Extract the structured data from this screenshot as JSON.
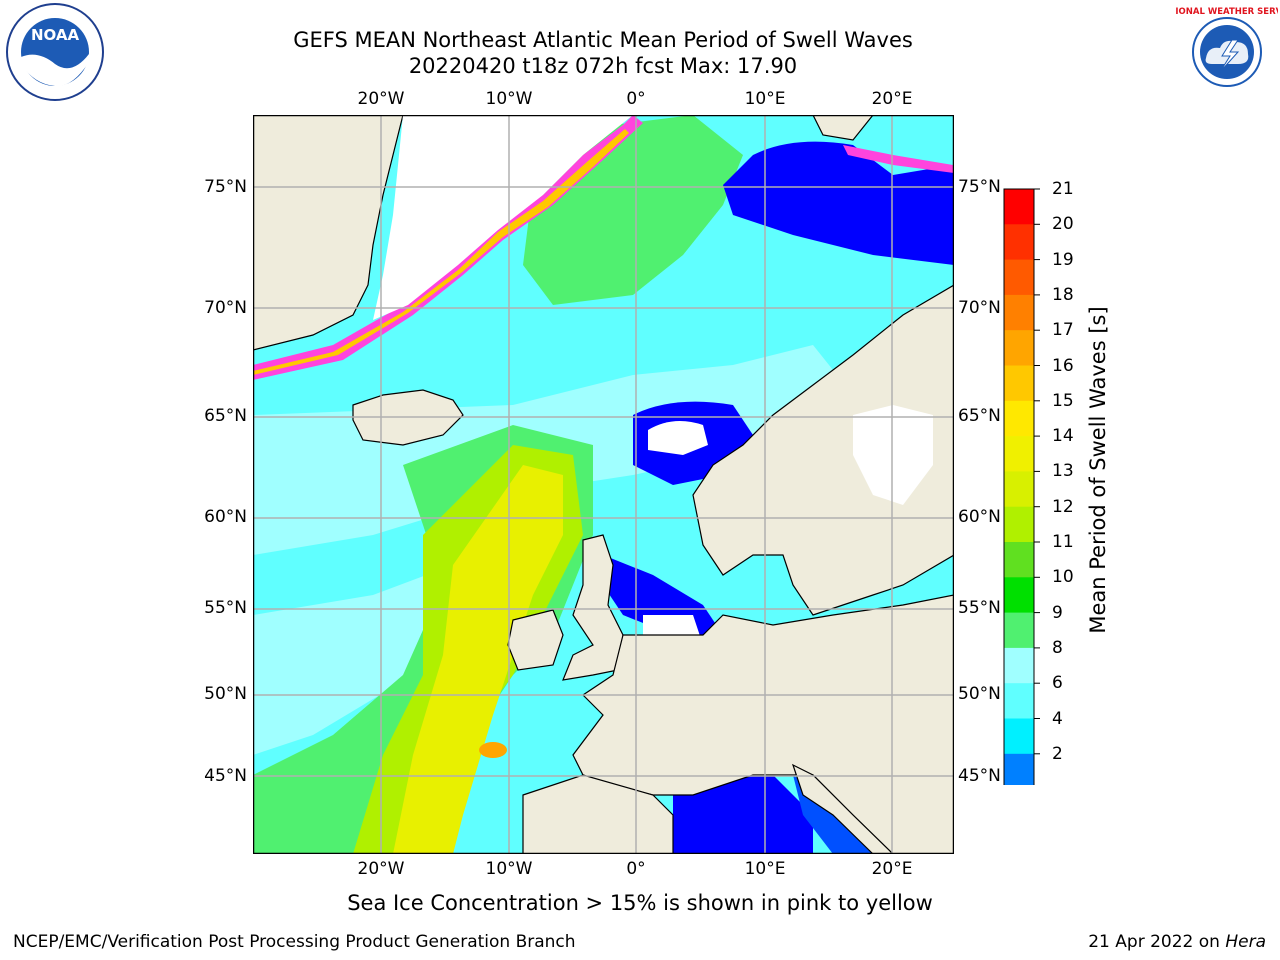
{
  "header": {
    "title_line1": "GEFS MEAN Northeast Atlantic Mean Period of Swell Waves",
    "title_line2": "20220420 t18z 072h fcst   Max: 17.90"
  },
  "map": {
    "lon_labels": [
      "20°W",
      "10°W",
      "0°",
      "10°E",
      "20°E"
    ],
    "lat_labels": [
      "75°N",
      "70°N",
      "65°N",
      "60°N",
      "55°N",
      "50°N",
      "45°N"
    ],
    "colors": {
      "land": "#efecdc",
      "ice_pink": "#ff44dd",
      "grid": "#b0b0b0"
    }
  },
  "colorbar": {
    "label": "Mean Period of Swell Waves [s]",
    "ticks": [
      "21",
      "20",
      "19",
      "18",
      "17",
      "16",
      "15",
      "14",
      "13",
      "12",
      "11",
      "10",
      "9",
      "8",
      "6",
      "4",
      "2"
    ],
    "colors": [
      "#ff0000",
      "#ff3000",
      "#ff5a00",
      "#ff8000",
      "#ffa500",
      "#ffc800",
      "#ffe800",
      "#f0f000",
      "#d8f000",
      "#b0f000",
      "#60e020",
      "#00e000",
      "#50f070",
      "#a0ffff",
      "#60ffff",
      "#00f0ff",
      "#0080ff",
      "#0000ff"
    ]
  },
  "footer": {
    "ice_note": "Sea Ice Concentration > 15% is shown in pink to yellow",
    "credit": "NCEP/EMC/Verification Post Processing Product Generation Branch",
    "date": "21 Apr 2022 on ",
    "host": "Hera"
  },
  "logos": {
    "noaa_text": "NOAA",
    "nws_text": "NATIONAL WEATHER SERVICE"
  }
}
